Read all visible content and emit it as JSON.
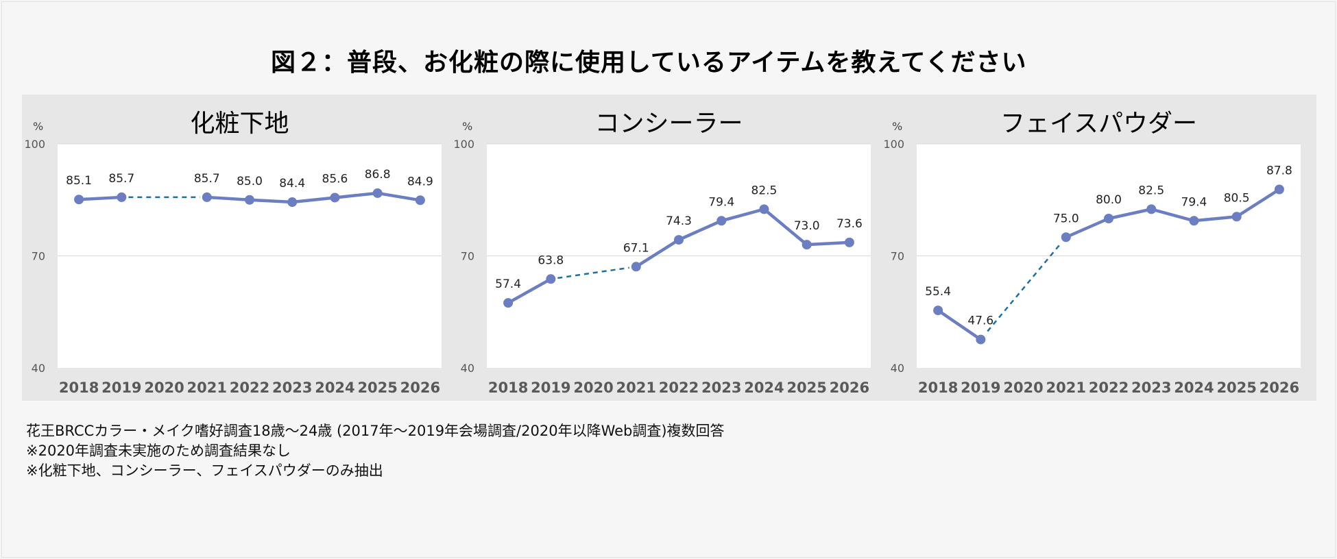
{
  "title": "図２：普段、お化粧の際に使用しているアイテムを教えてください",
  "colors": {
    "series": "#6b7ec2",
    "gap_line": "#1f6fa0",
    "panel_bg": "#e7e7e7",
    "plot_bg": "#ffffff",
    "grid": "#d9d9d9"
  },
  "chart_data": [
    {
      "type": "line",
      "title": "化粧下地",
      "unit": "%",
      "ylim": [
        40,
        100
      ],
      "yticks": [
        40,
        70,
        100
      ],
      "categories": [
        "2018",
        "2019",
        "2020",
        "2021",
        "2022",
        "2023",
        "2024",
        "2025",
        "2026"
      ],
      "series": [
        {
          "values": [
            85.1,
            85.7,
            null,
            85.7,
            85.0,
            84.4,
            85.6,
            86.8,
            84.9
          ],
          "labels": [
            "85.1",
            "85.7",
            "",
            "85.7",
            "85.0",
            "84.4",
            "85.6",
            "86.8",
            "84.9"
          ]
        }
      ],
      "gap_connector": {
        "from": "2019",
        "to": "2021",
        "style": "dashed"
      },
      "grid": true,
      "legend": "none"
    },
    {
      "type": "line",
      "title": "コンシーラー",
      "unit": "%",
      "ylim": [
        40,
        100
      ],
      "yticks": [
        40,
        70,
        100
      ],
      "categories": [
        "2018",
        "2019",
        "2020",
        "2021",
        "2022",
        "2023",
        "2024",
        "2025",
        "2026"
      ],
      "series": [
        {
          "values": [
            57.4,
            63.8,
            null,
            67.1,
            74.3,
            79.4,
            82.5,
            73.0,
            73.6
          ],
          "labels": [
            "57.4",
            "63.8",
            "",
            "67.1",
            "74.3",
            "79.4",
            "82.5",
            "73.0",
            "73.6"
          ]
        }
      ],
      "gap_connector": {
        "from": "2019",
        "to": "2021",
        "style": "dashed"
      },
      "grid": true,
      "legend": "none"
    },
    {
      "type": "line",
      "title": "フェイスパウダー",
      "unit": "%",
      "ylim": [
        40,
        100
      ],
      "yticks": [
        40,
        70,
        100
      ],
      "categories": [
        "2018",
        "2019",
        "2020",
        "2021",
        "2022",
        "2023",
        "2024",
        "2025",
        "2026"
      ],
      "series": [
        {
          "values": [
            55.4,
            47.6,
            null,
            75.0,
            80.0,
            82.5,
            79.4,
            80.5,
            87.8
          ],
          "labels": [
            "55.4",
            "47.6",
            "",
            "75.0",
            "80.0",
            "82.5",
            "79.4",
            "80.5",
            "87.8"
          ]
        }
      ],
      "gap_connector": {
        "from": "2019",
        "to": "2021",
        "style": "dashed"
      },
      "grid": true,
      "legend": "none"
    }
  ],
  "notes": [
    "花王BRCCカラー・メイク嗜好調査18歳～24歳 (2017年～2019年会場調査/2020年以降Web調査)複数回答",
    "※2020年調査未実施のため調査結果なし",
    "※化粧下地、コンシーラー、フェイスパウダーのみ抽出"
  ]
}
